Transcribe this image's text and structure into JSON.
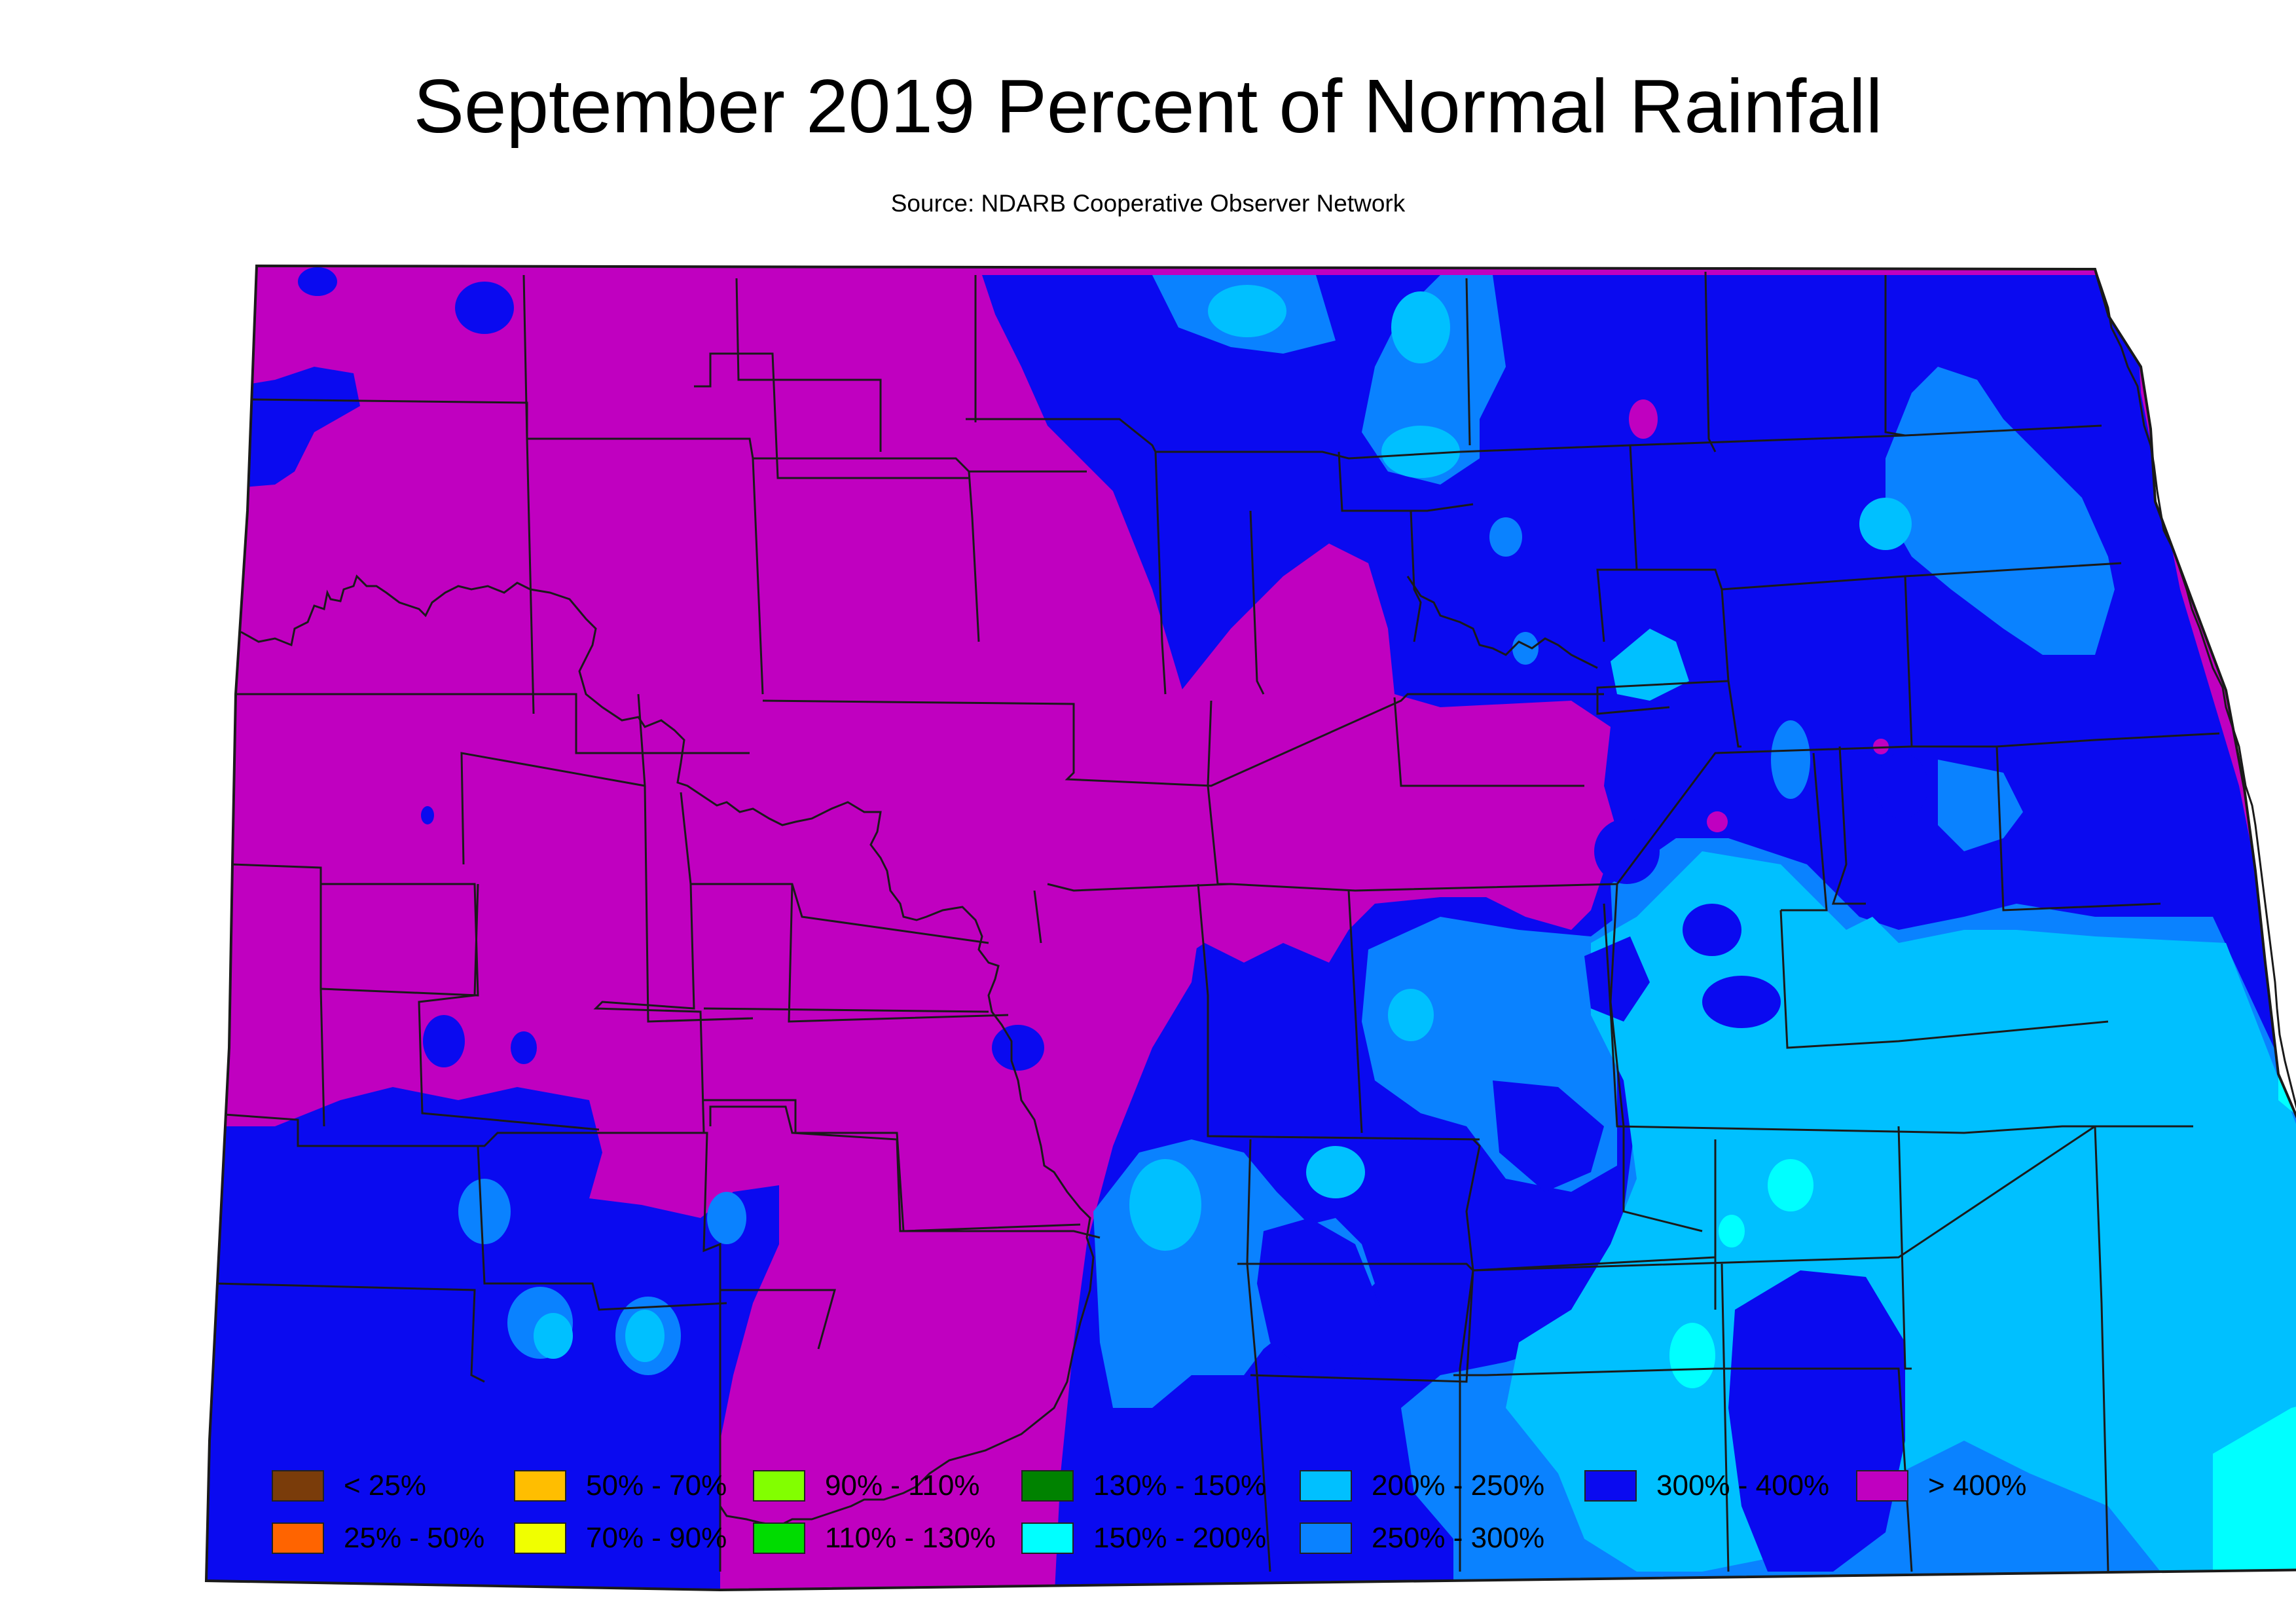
{
  "title": "September 2019 Percent of Normal Rainfall",
  "subtitle": "Source: NDARB Cooperative Observer Network",
  "colors": {
    "gt400": "#c000c0",
    "p300_400": "#0a0af0",
    "p250_300": "#0a82ff",
    "p200_250": "#00c0ff",
    "p150_200": "#00ffff",
    "border": "#1a1a1a"
  },
  "legend": [
    {
      "label": "< 25%",
      "color": "#7a3c0a"
    },
    {
      "label": "25% - 50%",
      "color": "#ff6400"
    },
    {
      "label": "50% - 70%",
      "color": "#ffbe00"
    },
    {
      "label": "70% - 90%",
      "color": "#f0ff00"
    },
    {
      "label": "90% - 110%",
      "color": "#82ff00"
    },
    {
      "label": "110% - 130%",
      "color": "#00dc00"
    },
    {
      "label": "130% - 150%",
      "color": "#008200"
    },
    {
      "label": "150% - 200%",
      "color": "#00ffff"
    },
    {
      "label": "200% - 250%",
      "color": "#00c0ff"
    },
    {
      "label": "250% - 300%",
      "color": "#0a82ff"
    },
    {
      "label": "300% - 400%",
      "color": "#0a0af0"
    },
    {
      "label": "> 400%",
      "color": "#c000c0"
    }
  ]
}
